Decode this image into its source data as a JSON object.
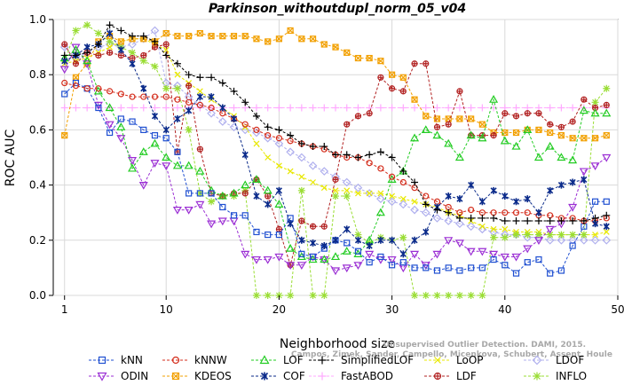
{
  "chart_data": {
    "type": "line",
    "title": "Parkinson_withoutdupl_norm_05_v04",
    "xlabel": "Neighborhood size",
    "ylabel": "ROC AUC",
    "xlim": [
      0,
      50
    ],
    "ylim": [
      0.0,
      1.0
    ],
    "xticks": [
      1,
      10,
      20,
      30,
      40,
      50
    ],
    "yticks": [
      0.0,
      0.2,
      0.4,
      0.6,
      0.8,
      1.0
    ],
    "grid": true,
    "x": [
      1,
      2,
      3,
      4,
      5,
      6,
      7,
      8,
      9,
      10,
      11,
      12,
      13,
      14,
      15,
      16,
      17,
      18,
      19,
      20,
      21,
      22,
      23,
      24,
      25,
      26,
      27,
      28,
      29,
      30,
      31,
      32,
      33,
      34,
      35,
      36,
      37,
      38,
      39,
      40,
      41,
      42,
      43,
      44,
      45,
      46,
      47,
      48,
      49
    ],
    "series": [
      {
        "name": "kNN",
        "color": "#1f4fd1",
        "marker": "square",
        "values": [
          0.73,
          0.77,
          0.75,
          0.68,
          0.59,
          0.64,
          0.63,
          0.6,
          0.58,
          0.57,
          0.52,
          0.37,
          0.37,
          0.37,
          0.32,
          0.29,
          0.29,
          0.23,
          0.22,
          0.22,
          0.28,
          0.15,
          0.14,
          0.17,
          0.2,
          0.19,
          0.16,
          0.12,
          0.14,
          0.11,
          0.12,
          0.1,
          0.1,
          0.09,
          0.1,
          0.09,
          0.1,
          0.1,
          0.13,
          0.11,
          0.08,
          0.12,
          0.13,
          0.08,
          0.09,
          0.18,
          0.25,
          0.34,
          0.34
        ]
      },
      {
        "name": "kNNW",
        "color": "#d42f1e",
        "marker": "circle",
        "values": [
          0.77,
          0.76,
          0.75,
          0.75,
          0.74,
          0.73,
          0.72,
          0.72,
          0.72,
          0.72,
          0.71,
          0.7,
          0.69,
          0.68,
          0.66,
          0.64,
          0.62,
          0.6,
          0.58,
          0.57,
          0.56,
          0.55,
          0.54,
          0.53,
          0.51,
          0.5,
          0.5,
          0.48,
          0.46,
          0.43,
          0.41,
          0.39,
          0.36,
          0.34,
          0.32,
          0.3,
          0.31,
          0.3,
          0.3,
          0.3,
          0.3,
          0.3,
          0.29,
          0.29,
          0.28,
          0.28,
          0.27,
          0.27,
          0.28
        ]
      },
      {
        "name": "LOF",
        "color": "#22cc22",
        "marker": "triangle-up",
        "values": [
          0.86,
          0.89,
          0.85,
          0.74,
          0.68,
          0.61,
          0.46,
          0.52,
          0.55,
          0.5,
          0.47,
          0.47,
          0.45,
          0.38,
          0.36,
          0.37,
          0.4,
          0.42,
          0.38,
          0.33,
          0.17,
          0.14,
          0.13,
          0.13,
          0.14,
          0.16,
          0.15,
          0.2,
          0.3,
          0.42,
          0.45,
          0.57,
          0.6,
          0.58,
          0.55,
          0.5,
          0.58,
          0.57,
          0.71,
          0.56,
          0.54,
          0.6,
          0.5,
          0.54,
          0.5,
          0.49,
          0.67,
          0.66,
          0.66
        ]
      },
      {
        "name": "SimplifiedLOF",
        "color": "#000000",
        "marker": "plus",
        "values": [
          0.87,
          0.87,
          0.88,
          0.91,
          0.98,
          0.96,
          0.94,
          0.94,
          0.92,
          0.87,
          0.84,
          0.8,
          0.79,
          0.79,
          0.77,
          0.74,
          0.7,
          0.65,
          0.61,
          0.6,
          0.58,
          0.55,
          0.54,
          0.54,
          0.51,
          0.51,
          0.5,
          0.51,
          0.52,
          0.5,
          0.45,
          0.41,
          0.33,
          0.31,
          0.3,
          0.28,
          0.28,
          0.28,
          0.28,
          0.27,
          0.27,
          0.27,
          0.27,
          0.27,
          0.27,
          0.27,
          0.27,
          0.28,
          0.29
        ]
      },
      {
        "name": "LoOP",
        "color": "#e8e800",
        "marker": "x",
        "values": [
          0.84,
          0.85,
          0.86,
          0.88,
          0.9,
          0.92,
          0.93,
          0.93,
          0.91,
          0.89,
          0.8,
          0.77,
          0.74,
          0.71,
          0.68,
          0.65,
          0.61,
          0.55,
          0.5,
          0.47,
          0.45,
          0.43,
          0.41,
          0.39,
          0.38,
          0.38,
          0.37,
          0.37,
          0.37,
          0.36,
          0.35,
          0.34,
          0.33,
          0.32,
          0.3,
          0.29,
          0.27,
          0.25,
          0.24,
          0.24,
          0.23,
          0.23,
          0.23,
          0.22,
          0.22,
          0.22,
          0.22,
          0.22,
          0.23
        ]
      },
      {
        "name": "LDOF",
        "color": "#b0b0ee",
        "marker": "diamond",
        "values": [
          0.9,
          0.86,
          0.88,
          0.9,
          0.91,
          0.9,
          0.91,
          0.93,
          0.96,
          0.77,
          0.76,
          0.72,
          0.69,
          0.66,
          0.63,
          0.61,
          0.6,
          0.59,
          0.57,
          0.55,
          0.52,
          0.5,
          0.47,
          0.45,
          0.43,
          0.41,
          0.39,
          0.37,
          0.35,
          0.34,
          0.33,
          0.31,
          0.3,
          0.28,
          0.27,
          0.26,
          0.25,
          0.24,
          0.23,
          0.22,
          0.22,
          0.21,
          0.21,
          0.2,
          0.2,
          0.2,
          0.2,
          0.2,
          0.2
        ]
      },
      {
        "name": "ODIN",
        "color": "#9b2fd4",
        "marker": "triangle-down",
        "values": [
          0.82,
          0.9,
          0.84,
          0.69,
          0.62,
          0.57,
          0.49,
          0.4,
          0.48,
          0.47,
          0.31,
          0.31,
          0.33,
          0.26,
          0.27,
          0.27,
          0.15,
          0.13,
          0.13,
          0.14,
          0.11,
          0.11,
          0.14,
          0.13,
          0.09,
          0.1,
          0.11,
          0.15,
          0.13,
          0.13,
          0.1,
          0.15,
          0.11,
          0.15,
          0.2,
          0.19,
          0.16,
          0.16,
          0.15,
          0.14,
          0.14,
          0.17,
          0.2,
          0.24,
          0.26,
          0.32,
          0.45,
          0.47,
          0.5
        ]
      },
      {
        "name": "COF",
        "color": "#0a2a8a",
        "marker": "asterisk",
        "values": [
          0.85,
          0.87,
          0.9,
          0.91,
          0.95,
          0.89,
          0.84,
          0.75,
          0.65,
          0.6,
          0.64,
          0.67,
          0.72,
          0.72,
          0.68,
          0.64,
          0.51,
          0.36,
          0.33,
          0.38,
          0.26,
          0.2,
          0.19,
          0.18,
          0.2,
          0.24,
          0.2,
          0.18,
          0.2,
          0.2,
          0.15,
          0.2,
          0.23,
          0.32,
          0.36,
          0.35,
          0.4,
          0.34,
          0.38,
          0.36,
          0.34,
          0.35,
          0.3,
          0.38,
          0.4,
          0.41,
          0.42,
          0.26,
          0.25
        ]
      },
      {
        "name": "FastABOD",
        "color": "#ffaaff",
        "marker": "plus",
        "values": [
          0.68,
          0.68,
          0.68,
          0.68,
          0.68,
          0.68,
          0.68,
          0.68,
          0.68,
          0.68,
          0.68,
          0.68,
          0.68,
          0.68,
          0.68,
          0.68,
          0.68,
          0.68,
          0.68,
          0.68,
          0.68,
          0.68,
          0.68,
          0.68,
          0.68,
          0.68,
          0.68,
          0.68,
          0.68,
          0.68,
          0.68,
          0.68,
          0.68,
          0.68,
          0.68,
          0.68,
          0.68,
          0.68,
          0.68,
          0.68,
          0.68,
          0.68,
          0.68,
          0.68,
          0.68,
          0.68,
          0.68,
          0.68,
          0.68
        ]
      },
      {
        "name": "KDEOS",
        "color": "#f2a000",
        "marker": "square-x",
        "values": [
          0.58,
          0.79,
          0.84,
          0.92,
          0.94,
          0.92,
          0.93,
          0.93,
          0.92,
          0.95,
          0.94,
          0.94,
          0.95,
          0.94,
          0.94,
          0.94,
          0.94,
          0.93,
          0.92,
          0.93,
          0.96,
          0.93,
          0.93,
          0.91,
          0.9,
          0.88,
          0.86,
          0.86,
          0.85,
          0.8,
          0.79,
          0.71,
          0.65,
          0.64,
          0.64,
          0.64,
          0.64,
          0.62,
          0.59,
          0.59,
          0.59,
          0.6,
          0.6,
          0.59,
          0.58,
          0.57,
          0.57,
          0.57,
          0.58
        ]
      },
      {
        "name": "LDF",
        "color": "#b22222",
        "marker": "circle-plus",
        "values": [
          0.91,
          0.84,
          0.88,
          0.87,
          0.88,
          0.87,
          0.86,
          0.87,
          0.9,
          0.91,
          0.52,
          0.76,
          0.53,
          0.37,
          0.36,
          0.37,
          0.37,
          0.42,
          0.36,
          0.24,
          0.11,
          0.27,
          0.25,
          0.25,
          0.42,
          0.62,
          0.65,
          0.66,
          0.79,
          0.75,
          0.74,
          0.84,
          0.84,
          0.61,
          0.62,
          0.74,
          0.58,
          0.58,
          0.58,
          0.66,
          0.65,
          0.66,
          0.66,
          0.62,
          0.61,
          0.63,
          0.71,
          0.68,
          0.69
        ]
      },
      {
        "name": "INFLO",
        "color": "#99dd33",
        "marker": "star",
        "values": [
          0.85,
          0.96,
          0.98,
          0.95,
          0.92,
          0.9,
          0.88,
          0.85,
          0.83,
          0.75,
          0.75,
          0.6,
          0.37,
          0.34,
          0.36,
          0.36,
          0.38,
          0.0,
          0.0,
          0.0,
          0.0,
          0.38,
          0.0,
          0.0,
          0.36,
          0.36,
          0.22,
          0.19,
          0.21,
          0.2,
          0.21,
          0.0,
          0.0,
          0.0,
          0.0,
          0.0,
          0.0,
          0.0,
          0.21,
          0.21,
          0.22,
          0.22,
          0.22,
          0.22,
          0.22,
          0.22,
          0.22,
          0.7,
          0.75
        ]
      }
    ],
    "legend": {
      "placement": "bottom",
      "rows": [
        [
          "kNN",
          "kNNW",
          "LOF",
          "SimplifiedLOF",
          "LoOP",
          "LDOF"
        ],
        [
          "ODIN",
          "KDEOS",
          "COF",
          "FastABOD",
          "LDF",
          "INFLO"
        ]
      ]
    },
    "credit": {
      "line1": "Unsupervised Outlier Detection. DAMI, 2015.",
      "line2": "Campos, Zimek, Sander, Campello, Micenkova, Schubert, Assent, Houle"
    }
  }
}
